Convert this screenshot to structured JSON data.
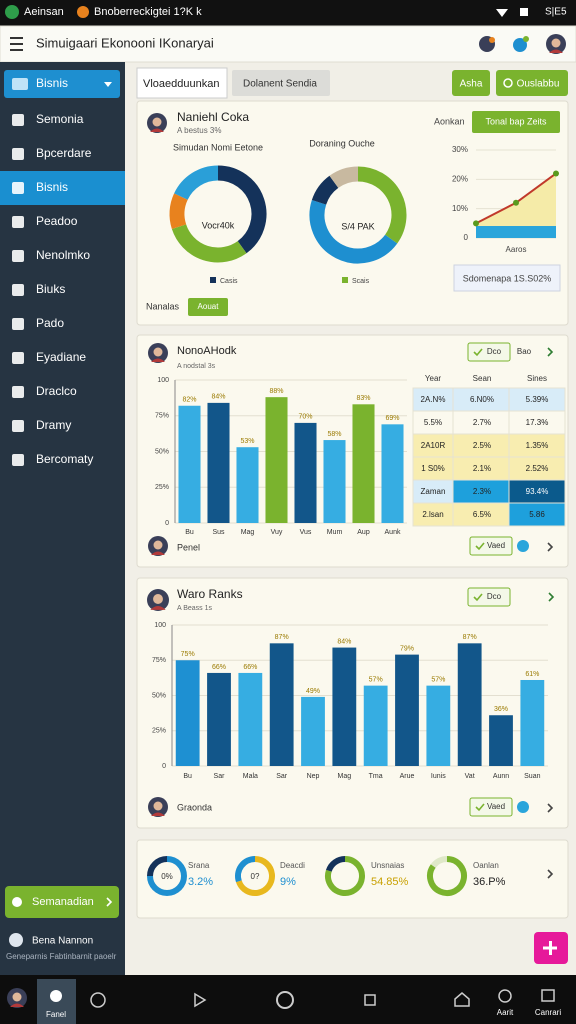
{
  "status_bar": {
    "left": [
      "Aeinsan",
      "Bnoberreckigtei 1?K k"
    ],
    "right": "S|E5"
  },
  "app_bar": {
    "title": "Simuigaari Ekonooni IKonaryai"
  },
  "sidebar": {
    "dropdown": "Bisnis",
    "items": [
      "Semonia",
      "Bpcerdare",
      "Bisnis",
      "Peadoo",
      "Nenolmko",
      "Biuks",
      "Pado",
      "Eyadiane",
      "Draclco",
      "Dramy",
      "Bercomaty"
    ],
    "selected": 2,
    "button": "Semanadian",
    "user": "Bena Nannon",
    "user_sub": "Geneparnis Fabtinbarnit paoelr"
  },
  "tabs": [
    "Vloaedduunkan",
    "Dolanent Sendia"
  ],
  "actions": [
    "Asha",
    "Ouslabbu"
  ],
  "card1": {
    "title": "Naniehl Coka",
    "subtitle": "A bestus 3%",
    "side_label": "Aonkan",
    "button": "Tonal bap Zeits",
    "donuts": [
      {
        "title": "Simudan Nomi Eetone",
        "center": "Vocr40k",
        "legend": "Casis",
        "segments": [
          {
            "value": 40,
            "color": "#14325a"
          },
          {
            "value": 30,
            "color": "#7ab32e"
          },
          {
            "value": 12,
            "color": "#e8821e"
          },
          {
            "value": 18,
            "color": "#2a9fd8"
          }
        ]
      },
      {
        "title": "Doraning Ouche",
        "center": "S/4 PAK",
        "legend": "Scais",
        "segments": [
          {
            "value": 35,
            "color": "#7ab32e"
          },
          {
            "value": 45,
            "color": "#1e8fd0"
          },
          {
            "value": 10,
            "color": "#14325a"
          },
          {
            "value": 10,
            "color": "#c8b9a0"
          }
        ]
      }
    ],
    "line": {
      "ylim": [
        0,
        30
      ],
      "yticks": [
        0,
        {
          "value": 10,
          "label": "10%"
        },
        {
          "value": 20,
          "label": "20%"
        },
        {
          "value": 30,
          "label": "30%"
        }
      ],
      "values": [
        5,
        12,
        22
      ],
      "color": "#c0392b",
      "xlabel": "Aaros"
    },
    "summary": "Sdomenapa 1S.S02%",
    "footer_label": "Nanalas",
    "footer_button": "Aouat"
  },
  "card2": {
    "title": "NonoAHodk",
    "subtitle": "A nodstal 3s",
    "buttons": [
      "Dco",
      "Bao"
    ],
    "chart": {
      "categories": [
        "Bu",
        "Sus",
        "Mag",
        "Vuy",
        "Vus",
        "Mum",
        "Aup",
        "Aunk"
      ],
      "values": [
        82,
        84,
        53,
        88,
        70,
        58,
        83,
        69
      ],
      "value_labels": [
        "82%",
        "84%",
        "53%",
        "88%",
        "70%",
        "58%",
        "83%",
        "69%"
      ],
      "colors": [
        "#36ade2",
        "#12568a",
        "#36ade2",
        "#7ab32e",
        "#12568a",
        "#36ade2",
        "#7ab32e",
        "#36ade2"
      ],
      "ylim": [
        0,
        100
      ],
      "yticks": [
        0,
        {
          "value": 25,
          "label": "25%"
        },
        {
          "value": 50,
          "label": "50%"
        },
        {
          "value": 75,
          "label": "75%"
        },
        100
      ]
    },
    "table": {
      "headers": [
        "Year",
        "Sean",
        "Sines"
      ],
      "rows": [
        [
          "2A.N%",
          "6.N0%",
          "5.39%"
        ],
        [
          "5.5%",
          "2.7%",
          "17.3%"
        ],
        [
          "2A10R",
          "2.5%",
          "1.35%"
        ],
        [
          "1 S0%",
          "2.1%",
          "2.52%"
        ],
        [
          "Zaman",
          "2.3%",
          "93.4%"
        ],
        [
          "2.lsan",
          "6.5%",
          "5.86"
        ]
      ]
    },
    "footer_label": "Penel",
    "footer_button": "Vaed"
  },
  "card3": {
    "title": "Waro Ranks",
    "subtitle": "A Beass 1s",
    "button": "Dco",
    "chart": {
      "categories": [
        "Bu",
        "Sar",
        "Mala",
        "Sar",
        "Nep",
        "Mag",
        "Tma",
        "Arue",
        "Iunis",
        "Vat",
        "Aunn",
        "Suan"
      ],
      "values": [
        75,
        66,
        66,
        87,
        49,
        84,
        57,
        79,
        57,
        87,
        36,
        61
      ],
      "value_labels": [
        "75%",
        "66%",
        "66%",
        "87%",
        "49%",
        "84%",
        "57%",
        "79%",
        "57%",
        "87%",
        "36%",
        "61%"
      ],
      "colors": [
        "#1e90d2",
        "#12568a",
        "#36ade2",
        "#12568a",
        "#36ade2",
        "#12568a",
        "#36ade2",
        "#12568a",
        "#36ade2",
        "#12568a",
        "#12568a",
        "#36ade2"
      ],
      "ylim": [
        0,
        100
      ],
      "yticks": [
        0,
        {
          "value": 25,
          "label": "25%"
        },
        {
          "value": 50,
          "label": "50%"
        },
        {
          "value": 75,
          "label": "75%"
        },
        100
      ]
    },
    "footer_label": "Graonda",
    "footer_button": "Vaed"
  },
  "card4": {
    "items": [
      {
        "center": "0%",
        "name": "Srana",
        "label": "3.2%",
        "segments": [
          {
            "value": 75,
            "color": "#1e8fd0"
          },
          {
            "value": 25,
            "color": "#14325a"
          }
        ]
      },
      {
        "center": "0?",
        "name": "Deacdi",
        "label": "9%",
        "segments": [
          {
            "value": 70,
            "color": "#e8b81e"
          },
          {
            "value": 30,
            "color": "#1e8fd0"
          }
        ]
      },
      {
        "center": "",
        "name": "Unsnaias",
        "label": "54.85%",
        "segments": [
          {
            "value": 80,
            "color": "#7ab32e"
          },
          {
            "value": 20,
            "color": "#14325a"
          }
        ]
      },
      {
        "center": "",
        "name": "Oanlan",
        "label": "36.P%",
        "segments": [
          {
            "value": 85,
            "color": "#7ab32e"
          },
          {
            "value": 15,
            "color": "#dfe8c8"
          }
        ]
      }
    ]
  },
  "bottom_nav": [
    "Fanel",
    "Aarit",
    "Canrari"
  ]
}
